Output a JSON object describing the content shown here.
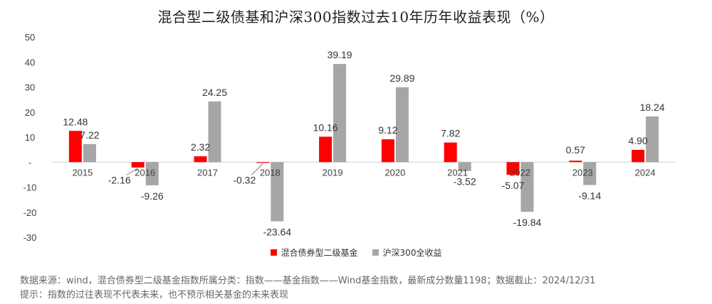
{
  "chart_data": {
    "type": "bar",
    "title": "混合型二级债基和沪深300指数过去10年历年收益表现（%）",
    "categories": [
      "2015",
      "2016",
      "2017",
      "2018",
      "2019",
      "2020",
      "2021",
      "2022",
      "2023",
      "2024"
    ],
    "series": [
      {
        "name": "混合债券型二级基金",
        "color": "#ff0000",
        "values": [
          12.48,
          -2.16,
          2.32,
          -0.32,
          10.16,
          9.12,
          7.82,
          -5.07,
          0.57,
          4.9
        ],
        "labels": [
          "12.48",
          "-2.16",
          "2.32",
          "-0.32",
          "10.16",
          "9.12",
          "7.82",
          "-5.07",
          "0.57",
          "4.90"
        ]
      },
      {
        "name": "沪深300全收益",
        "color": "#a6a6a6",
        "values": [
          7.22,
          -9.26,
          24.25,
          -23.64,
          39.19,
          29.89,
          -3.52,
          -19.84,
          -9.14,
          18.24
        ],
        "labels": [
          "7.22",
          "-9.26",
          "24.25",
          "-23.64",
          "39.19",
          "29.89",
          "-3.52",
          "-19.84",
          "-9.14",
          "18.24"
        ]
      }
    ],
    "ylim": [
      -30,
      50
    ],
    "yticks": [
      50,
      40,
      30,
      20,
      10,
      0,
      -10,
      -20,
      -30
    ],
    "ytick_labels": [
      "50",
      "40",
      "30",
      "20",
      "10",
      "-",
      "-10",
      "-20",
      "-30"
    ],
    "grid": false,
    "legend_position": "bottom"
  },
  "footnotes": {
    "source": "数据来源：wind，混合债券型二级基金指数所属分类：指数——基金指数——Wind基金指数，最新成分数量1198；数据截止：2024/12/31",
    "disclaimer": "提示：指数的过往表现不代表未来，也不预示相关基金的未来表现"
  }
}
